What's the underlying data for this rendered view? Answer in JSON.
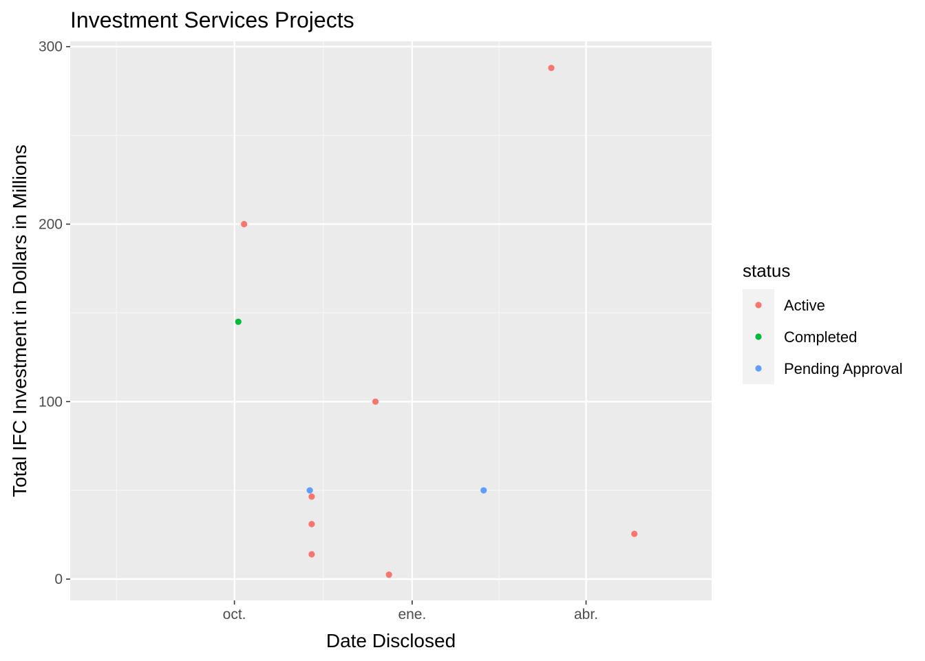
{
  "chart_data": {
    "type": "scatter",
    "title": "Investment Services Projects",
    "xlabel": "Date Disclosed",
    "ylabel": "Total IFC Investment in Dollars in Millions",
    "x_axis_type": "date",
    "xlim": [
      "2017-07-08",
      "2018-06-05"
    ],
    "ylim": [
      -12,
      303
    ],
    "x_ticks": [
      {
        "value": "2017-10-01",
        "label": "oct."
      },
      {
        "value": "2018-01-01",
        "label": "ene."
      },
      {
        "value": "2018-04-01",
        "label": "abr."
      }
    ],
    "x_minor_ticks": [
      "2017-08-01",
      "2017-11-16",
      "2018-02-15"
    ],
    "y_ticks": [
      0,
      100,
      200,
      300
    ],
    "y_minor_ticks": [
      50,
      150,
      250
    ],
    "grid": true,
    "legend": {
      "title": "status",
      "position": "right"
    },
    "series": [
      {
        "name": "Active",
        "color": "#F8766D",
        "points": [
          {
            "x": "2017-10-06",
            "y": 200
          },
          {
            "x": "2017-11-10",
            "y": 46.5
          },
          {
            "x": "2017-11-10",
            "y": 31
          },
          {
            "x": "2017-11-10",
            "y": 14
          },
          {
            "x": "2017-12-13",
            "y": 100
          },
          {
            "x": "2017-12-20",
            "y": 2.5
          },
          {
            "x": "2018-03-14",
            "y": 288
          },
          {
            "x": "2018-04-26",
            "y": 25.5
          }
        ]
      },
      {
        "name": "Completed",
        "color": "#00BA38",
        "points": [
          {
            "x": "2017-10-03",
            "y": 145
          }
        ]
      },
      {
        "name": "Pending Approval",
        "color": "#619CFF",
        "points": [
          {
            "x": "2017-11-09",
            "y": 50
          },
          {
            "x": "2018-02-07",
            "y": 50
          }
        ]
      }
    ]
  }
}
